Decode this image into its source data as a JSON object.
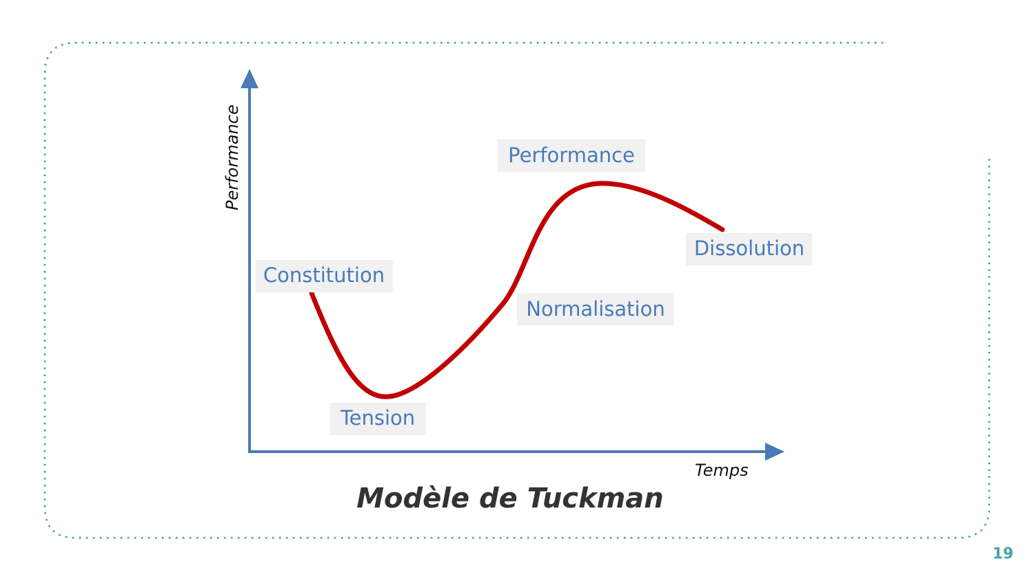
{
  "diagram": {
    "y_axis_label": "Performance",
    "x_axis_label": "Temps",
    "stages": [
      "Constitution",
      "Tension",
      "Normalisation",
      "Performance",
      "Dissolution"
    ],
    "caption": "Modèle de Tuckman"
  },
  "page_number": "19"
}
